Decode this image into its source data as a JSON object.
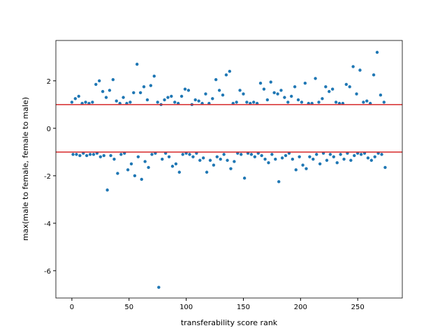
{
  "chart_data": {
    "type": "scatter",
    "xlabel": "transferability score rank",
    "ylabel": "max(male to female, female to male)",
    "xlim": [
      -14,
      289
    ],
    "ylim": [
      -7.15,
      3.7
    ],
    "xticks": [
      0,
      50,
      100,
      150,
      200,
      250
    ],
    "yticks": [
      -6,
      -4,
      -2,
      0,
      2
    ],
    "hlines": [
      1,
      -1
    ],
    "hline_color": "#d62728",
    "color": "#1f77b4",
    "x": [
      0,
      1,
      3,
      4,
      6,
      7,
      9,
      10,
      12,
      13,
      15,
      16,
      18,
      19,
      21,
      22,
      24,
      25,
      27,
      28,
      30,
      31,
      33,
      34,
      36,
      37,
      39,
      40,
      42,
      43,
      45,
      46,
      48,
      49,
      51,
      52,
      54,
      55,
      57,
      58,
      60,
      61,
      63,
      64,
      66,
      67,
      69,
      70,
      72,
      73,
      75,
      76,
      78,
      79,
      81,
      82,
      84,
      85,
      87,
      88,
      90,
      91,
      93,
      94,
      96,
      97,
      99,
      100,
      102,
      103,
      105,
      106,
      108,
      109,
      111,
      112,
      114,
      115,
      117,
      118,
      120,
      121,
      123,
      124,
      126,
      127,
      129,
      130,
      132,
      133,
      135,
      136,
      138,
      139,
      141,
      142,
      144,
      145,
      147,
      148,
      150,
      151,
      153,
      154,
      156,
      157,
      159,
      160,
      162,
      163,
      165,
      166,
      168,
      169,
      171,
      172,
      174,
      175,
      177,
      178,
      180,
      181,
      183,
      184,
      186,
      187,
      189,
      190,
      192,
      193,
      195,
      196,
      198,
      199,
      201,
      202,
      204,
      205,
      207,
      208,
      210,
      211,
      213,
      214,
      216,
      217,
      219,
      220,
      222,
      223,
      225,
      226,
      228,
      229,
      231,
      232,
      234,
      235,
      237,
      238,
      240,
      241,
      243,
      244,
      246,
      247,
      249,
      250,
      252,
      253,
      255,
      256,
      258,
      259,
      261,
      262,
      264,
      265,
      267,
      268,
      270,
      271,
      273,
      274
    ],
    "y": [
      1.1,
      -1.1,
      1.25,
      -1.1,
      1.35,
      -1.15,
      1.05,
      -1.05,
      1.1,
      -1.15,
      1.05,
      -1.1,
      1.1,
      -1.1,
      1.85,
      -1.05,
      2.0,
      -1.2,
      1.55,
      -1.15,
      1.3,
      -2.6,
      1.6,
      -1.15,
      2.05,
      -1.3,
      1.15,
      -1.9,
      1.05,
      -1.1,
      1.3,
      -1.05,
      1.05,
      -1.75,
      1.1,
      -1.5,
      1.5,
      -2.0,
      2.7,
      -1.2,
      1.5,
      -2.15,
      1.75,
      -1.4,
      1.2,
      -1.65,
      1.8,
      -1.1,
      2.2,
      -1.05,
      1.1,
      -6.7,
      1.0,
      -1.3,
      1.2,
      -1.05,
      1.3,
      -1.2,
      1.35,
      -1.6,
      1.1,
      -1.5,
      1.05,
      -1.85,
      1.35,
      -1.1,
      1.65,
      -1.05,
      1.6,
      -1.1,
      1.0,
      -1.2,
      1.2,
      -1.05,
      1.15,
      -1.35,
      1.05,
      -1.25,
      1.45,
      -1.85,
      1.05,
      -1.35,
      1.25,
      -1.55,
      2.05,
      -1.2,
      1.6,
      -1.3,
      1.4,
      -1.1,
      2.25,
      -1.35,
      2.4,
      -1.7,
      1.05,
      -1.4,
      1.1,
      -1.05,
      1.6,
      -1.1,
      1.45,
      -2.1,
      1.1,
      -1.05,
      1.05,
      -1.1,
      1.1,
      -1.2,
      1.05,
      -1.05,
      1.9,
      -1.15,
      1.65,
      -1.3,
      1.2,
      -1.45,
      1.95,
      -1.1,
      1.5,
      -1.3,
      1.45,
      -2.25,
      1.6,
      -1.25,
      1.3,
      -1.15,
      1.1,
      -1.05,
      1.35,
      -1.3,
      1.75,
      -1.75,
      1.2,
      -1.2,
      1.1,
      -1.55,
      1.9,
      -1.7,
      1.05,
      -1.2,
      1.05,
      -1.3,
      2.1,
      -1.1,
      1.1,
      -1.5,
      1.25,
      -1.05,
      1.75,
      -1.35,
      1.55,
      -1.1,
      1.65,
      -1.2,
      1.1,
      -1.45,
      1.05,
      -1.1,
      1.05,
      -1.3,
      1.85,
      -1.05,
      1.75,
      -1.35,
      2.6,
      -1.15,
      1.45,
      -1.05,
      2.45,
      -1.1,
      1.1,
      -1.05,
      1.15,
      -1.25,
      1.05,
      -1.35,
      2.25,
      -1.2,
      3.2,
      -1.05,
      1.4,
      -1.1,
      1.1,
      -1.65
    ]
  }
}
